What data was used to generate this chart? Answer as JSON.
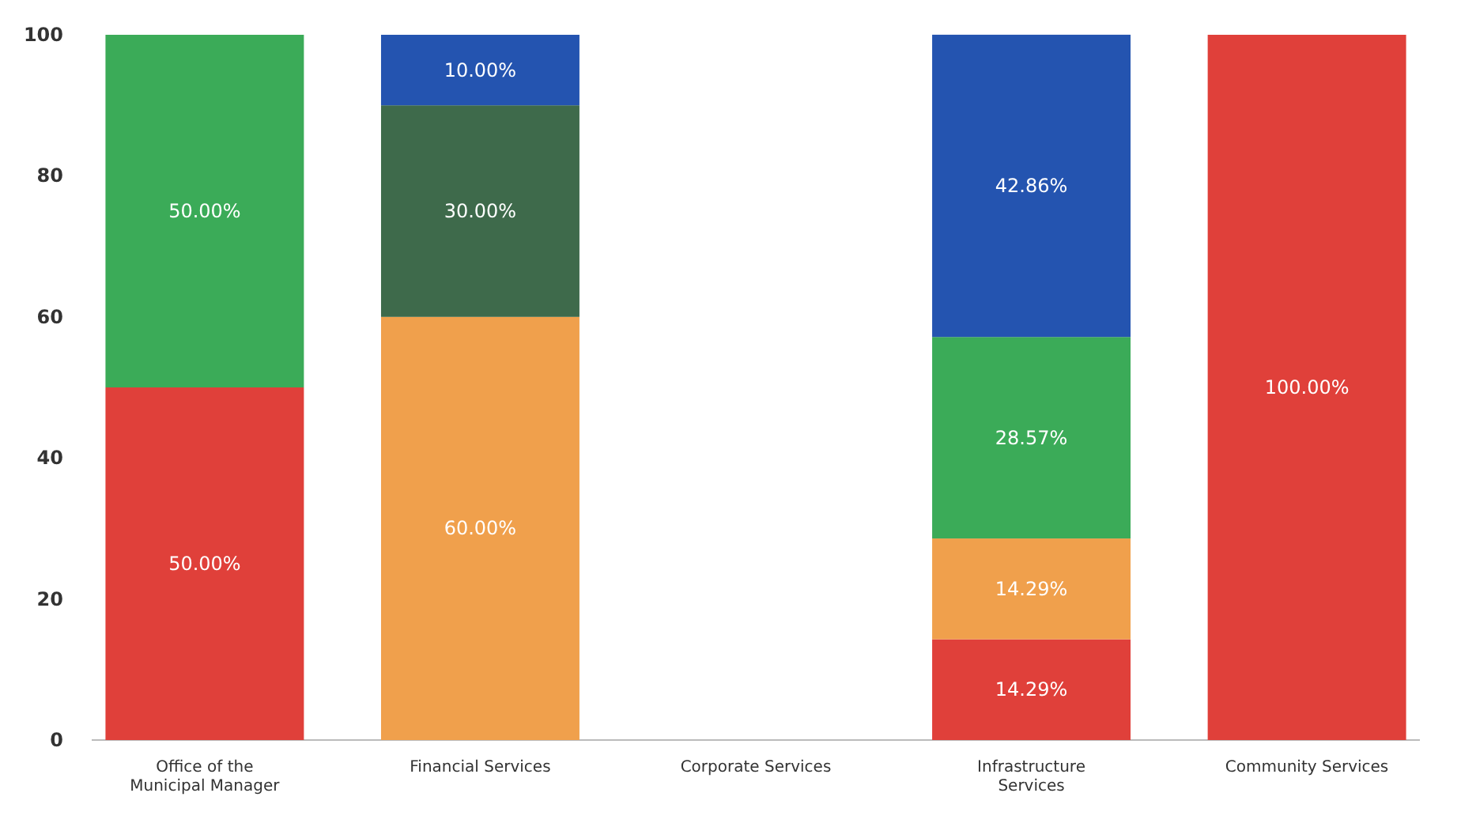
{
  "chart_data": {
    "type": "bar",
    "stacked": true,
    "categories": [
      "Office of the Municipal Manager",
      "Financial Services",
      "Corporate Services",
      "Infrastructure Services",
      "Community Services"
    ],
    "series": [
      {
        "color": "#e0403a",
        "values": [
          50,
          null,
          null,
          14.29,
          100
        ],
        "value_labels": [
          "50.00%",
          null,
          null,
          "14.29%",
          "100.00%"
        ]
      },
      {
        "color": "#f0a04c",
        "values": [
          null,
          60,
          null,
          14.29,
          null
        ],
        "value_labels": [
          null,
          "60.00%",
          null,
          "14.29%",
          null
        ]
      },
      {
        "color": "#3bab58",
        "values": [
          50,
          null,
          null,
          28.57,
          null
        ],
        "value_labels": [
          "50.00%",
          null,
          null,
          "28.57%",
          null
        ]
      },
      {
        "color": "#3e6a4b",
        "values": [
          null,
          30,
          null,
          null,
          null
        ],
        "value_labels": [
          null,
          "30.00%",
          null,
          null,
          null
        ]
      },
      {
        "color": "#2454b0",
        "values": [
          null,
          10,
          null,
          42.86,
          null
        ],
        "value_labels": [
          null,
          "10.00%",
          null,
          "42.86%",
          null
        ]
      }
    ],
    "ylim": [
      0,
      100
    ],
    "yticks": [
      0,
      20,
      40,
      60,
      80,
      100
    ],
    "grid": false
  }
}
